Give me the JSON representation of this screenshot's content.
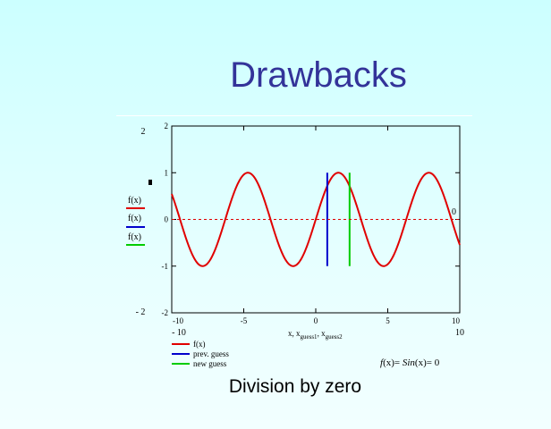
{
  "slide": {
    "title": "Drawbacks",
    "caption": "Division by zero"
  },
  "chart_data": {
    "type": "line",
    "title": "",
    "xlabel": "x, x_guess1, x_guess2",
    "ylabel": "",
    "xlim": [
      -10,
      10
    ],
    "ylim": [
      -2,
      2
    ],
    "x_ticks": [
      -10,
      -5,
      0,
      5,
      10
    ],
    "y_ticks": [
      -2,
      -1,
      0,
      1,
      2
    ],
    "x_tick_labels": [
      "-10",
      "-5",
      "0",
      "5",
      "10"
    ],
    "y_tick_labels": [
      "-2",
      "-1",
      "0",
      "1",
      "2"
    ],
    "x_range_labels": [
      "- 10",
      "10"
    ],
    "y_range_labels": [
      "2",
      "- 2"
    ],
    "zero_label": "0",
    "grid": false,
    "legend_position": "bottom-left",
    "series": [
      {
        "name": "f(x)",
        "function": "sin(x)",
        "color": "#e00000",
        "style": "solid"
      },
      {
        "name": "prev. guess",
        "x": [
          0.8,
          0.8
        ],
        "y": [
          -1,
          1
        ],
        "color": "#0000cc",
        "style": "solid"
      },
      {
        "name": "new guess",
        "x": [
          2.35,
          2.35
        ],
        "y": [
          -1,
          1
        ],
        "color": "#00cc00",
        "style": "solid"
      },
      {
        "name": "zero line",
        "y_const": 0,
        "color": "#e00000",
        "style": "dashed"
      }
    ],
    "left_legend": [
      "f(x)",
      "f(x)",
      "f(x)"
    ],
    "bottom_legend": [
      "f(x)",
      "prev. guess",
      "new guess"
    ],
    "xlabel_parts": {
      "a": "x, x",
      "b": "guess1",
      "c": ", x",
      "d": "guess2"
    },
    "annotation": {
      "lhs": "f(x) = Sin(x) = 0",
      "p1": "f",
      "p2": "(x)= ",
      "p3": "Sin",
      "p4": "(x)",
      "p5": "= 0"
    }
  }
}
